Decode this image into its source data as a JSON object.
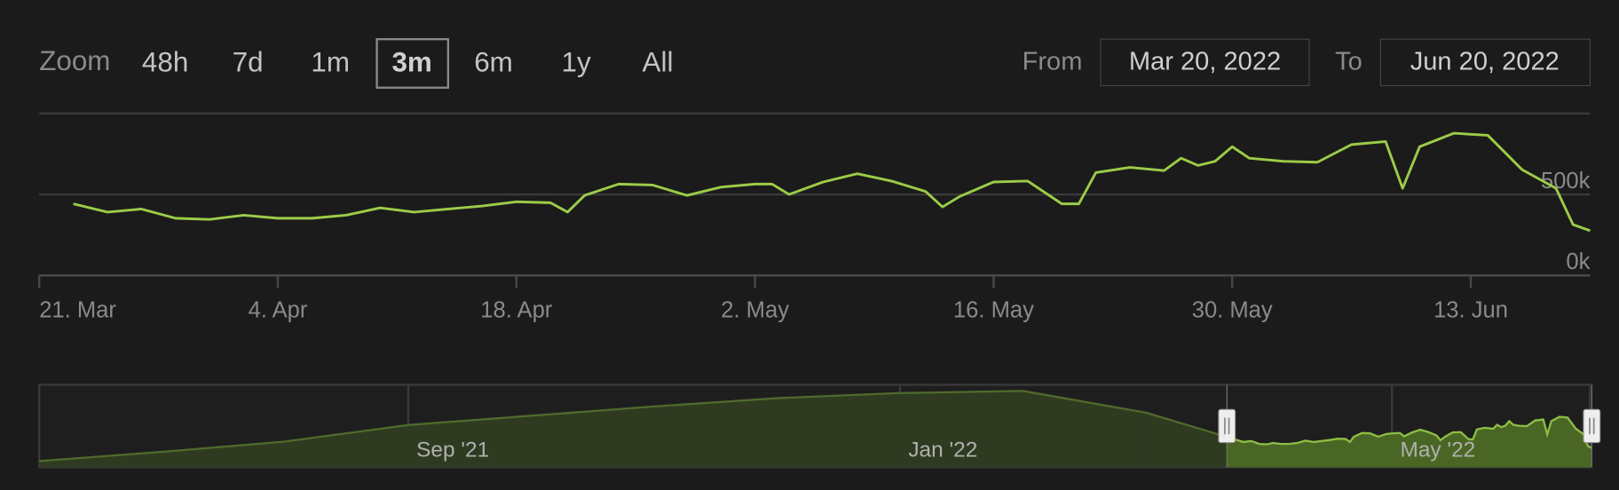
{
  "zoom": {
    "label": "Zoom",
    "options": [
      "48h",
      "7d",
      "1m",
      "3m",
      "6m",
      "1y",
      "All"
    ],
    "selected_index": 3
  },
  "range": {
    "from_label": "From",
    "from": "Mar 20, 2022",
    "to_label": "To",
    "to": "Jun 20, 2022"
  },
  "chart_data": [
    {
      "type": "line",
      "x": [
        "23. Mar",
        "25. Mar",
        "27. Mar",
        "29. Mar",
        "31. Mar",
        "2. Apr",
        "4. Apr",
        "6. Apr",
        "8. Apr",
        "10. Apr",
        "12. Apr",
        "14. Apr",
        "16. Apr",
        "18. Apr",
        "20. Apr",
        "21. Apr",
        "22. Apr",
        "24. Apr",
        "26. Apr",
        "28. Apr",
        "30. Apr",
        "2. May",
        "3. May",
        "4. May",
        "6. May",
        "8. May",
        "10. May",
        "12. May",
        "13. May",
        "14. May",
        "16. May",
        "18. May",
        "20. May",
        "21. May",
        "22. May",
        "24. May",
        "26. May",
        "27. May",
        "28. May",
        "29. May",
        "30. May",
        "31. May",
        "2. Jun",
        "4. Jun",
        "6. Jun",
        "8. Jun",
        "9. Jun",
        "10. Jun",
        "12. Jun",
        "14. Jun",
        "16. Jun",
        "18. Jun",
        "19. Jun",
        "20. Jun"
      ],
      "series": [
        {
          "color": "#9ccc48",
          "values": [
            442000,
            391000,
            410000,
            353000,
            346000,
            372000,
            353000,
            353000,
            372000,
            417000,
            391000,
            410000,
            429000,
            455000,
            449000,
            391000,
            494000,
            564000,
            558000,
            494000,
            545000,
            564000,
            564000,
            500000,
            577000,
            628000,
            583000,
            519000,
            423000,
            487000,
            577000,
            583000,
            442000,
            442000,
            635000,
            667000,
            647000,
            724000,
            679000,
            705000,
            795000,
            724000,
            705000,
            699000,
            808000,
            827000,
            538000,
            795000,
            878000,
            865000,
            654000,
            538000,
            314000,
            276000
          ]
        }
      ],
      "xlim": [
        "21. Mar",
        "20. Jun"
      ],
      "xticks": [
        "21. Mar",
        "4. Apr",
        "18. Apr",
        "2. May",
        "16. May",
        "30. May",
        "13. Jun"
      ],
      "ylim": [
        0,
        1000000
      ],
      "yticks": [
        {
          "value": 0,
          "label": "0k"
        },
        {
          "value": 500000,
          "label": "500k"
        }
      ],
      "grid": true
    },
    {
      "type": "area",
      "x": [
        "Jun '21",
        "Jul '21",
        "Aug '21",
        "Sep '21",
        "Oct '21",
        "Nov '21",
        "Dec '21",
        "Jan '22",
        "Feb '22",
        "Mar '22"
      ],
      "values": [
        20000,
        200000,
        400000,
        720000,
        900000,
        1080000,
        1240000,
        1340000,
        1380000,
        960000
      ],
      "color": "#4f6a2c",
      "ylim": [
        -100000,
        1500000
      ],
      "xticks": [
        "Sep '21",
        "Jan '22",
        "May '22"
      ]
    }
  ]
}
